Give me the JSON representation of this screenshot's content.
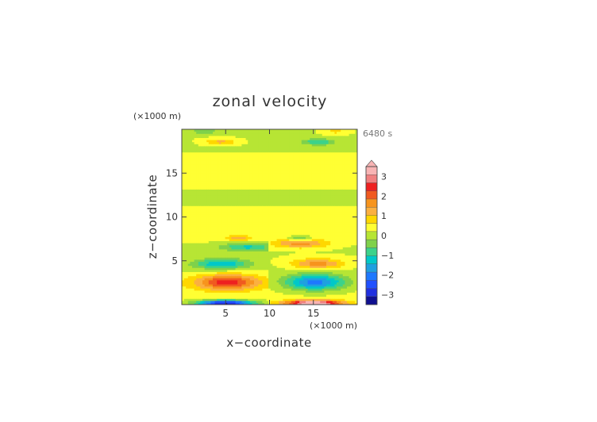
{
  "chart_data": {
    "type": "heatmap",
    "title": "zonal velocity",
    "time_label": "6480 s",
    "xlabel": "x−coordinate",
    "ylabel": "z−coordinate",
    "x_unit": "(×1000 m)",
    "y_unit": "(×1000 m)",
    "xlim": [
      0,
      20
    ],
    "ylim": [
      0,
      20
    ],
    "xticks": [
      5,
      10,
      15
    ],
    "yticks": [
      5,
      10,
      15
    ],
    "colorbar": {
      "labels": [
        "3",
        "2",
        "1",
        "0",
        "−1",
        "−2",
        "−3"
      ],
      "label_values": [
        3,
        2,
        1,
        0,
        -1,
        -2,
        -3
      ],
      "range": [
        -3.5,
        3.5
      ],
      "extend_top": true,
      "colors_top_to_bottom": [
        "#f8b4b4",
        "#f08080",
        "#ee2020",
        "#f05a20",
        "#f7941d",
        "#fbb040",
        "#ffd700",
        "#ffff33",
        "#b7e534",
        "#7fd14b",
        "#3cd28a",
        "#00c8c8",
        "#1fa0e0",
        "#1e78ff",
        "#2050ff",
        "#2030e0",
        "#101090"
      ]
    },
    "field_description": "left half (x<10): negative core near z=0.3, positive core near z=2.6, negative core near z=4.6, negative band near z=6.6, small positive at z=18.6; right half (x>10): positive core near z=0.3, negative core near z=2.6, positive near z=4.6, positive band near z=7, small negative at z=18.6; broad weak 0 to 0.5 banding elsewhere"
  }
}
